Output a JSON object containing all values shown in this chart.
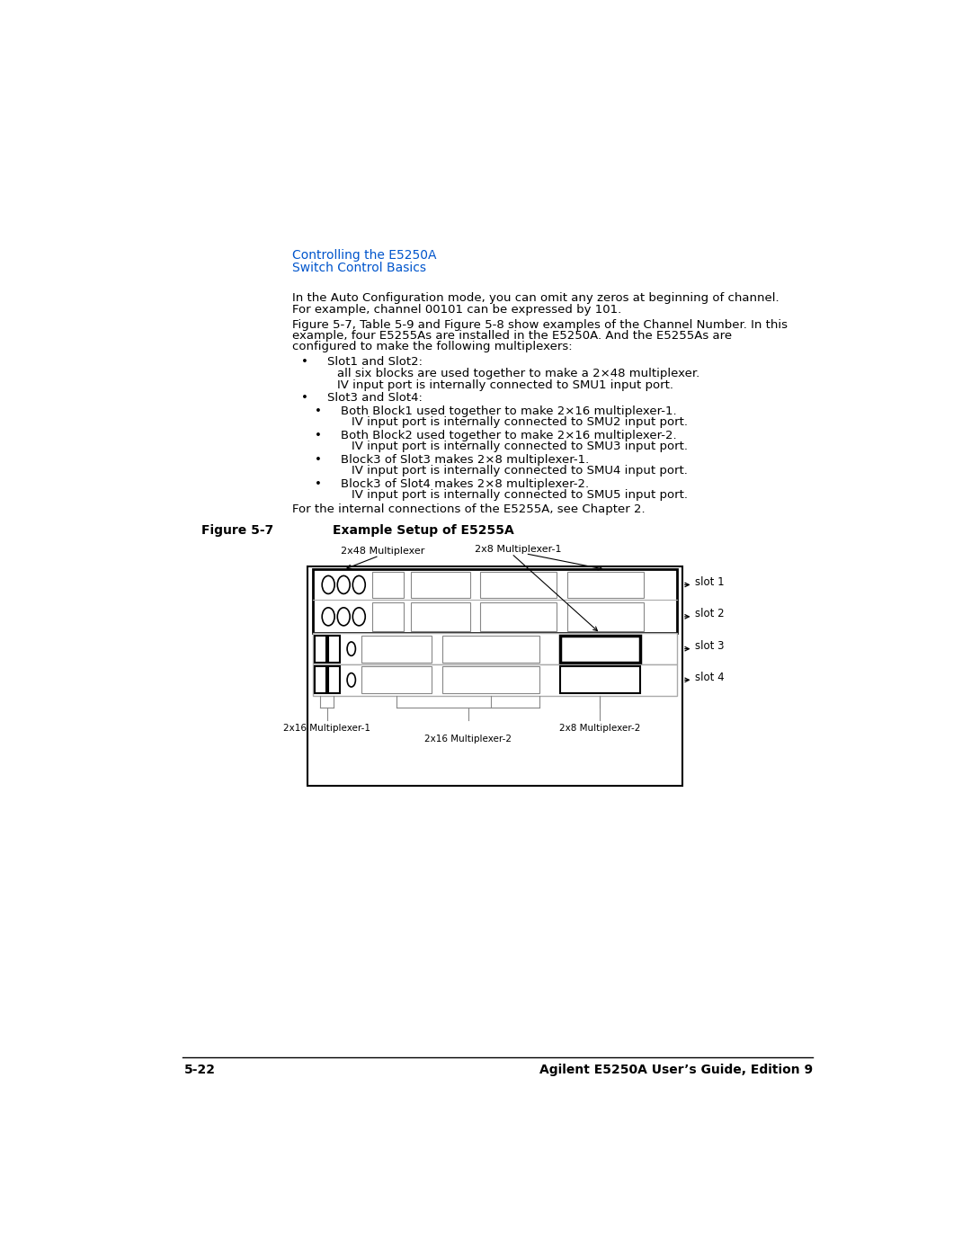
{
  "page_bg": "#ffffff",
  "header_color": "#0000cc",
  "header_line1": "Controlling the E5250A",
  "header_line2": "Switch Control Basics",
  "figure_label": "Figure 5-7",
  "figure_title": "Example Setup of E5255A",
  "footer_left": "5-22",
  "footer_right": "Agilent E5250A User’s Guide, Edition 9",
  "diagram": {
    "label_2x48": "2x48 Multiplexer",
    "label_2x8_1": "2x8 Multiplexer-1",
    "label_2x8_2": "2x8 Multiplexer-2",
    "label_2x16_1": "2x16 Multiplexer-1",
    "label_2x16_2": "2x16 Multiplexer-2",
    "slot_labels": [
      "slot 1",
      "slot 2",
      "slot 3",
      "slot 4"
    ]
  }
}
